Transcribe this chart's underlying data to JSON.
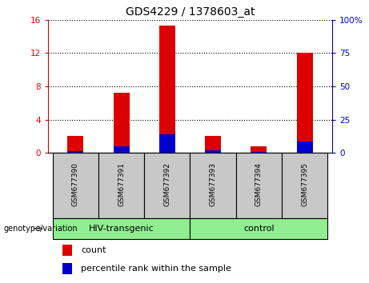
{
  "title": "GDS4229 / 1378603_at",
  "samples": [
    "GSM677390",
    "GSM677391",
    "GSM677392",
    "GSM677393",
    "GSM677394",
    "GSM677395"
  ],
  "red_values": [
    2.0,
    7.2,
    15.3,
    2.0,
    0.8,
    12.0
  ],
  "blue_values": [
    0.2,
    0.8,
    2.2,
    0.3,
    0.15,
    1.4
  ],
  "ylim_left": [
    0,
    16
  ],
  "ylim_right": [
    0,
    100
  ],
  "yticks_left": [
    0,
    4,
    8,
    12,
    16
  ],
  "yticks_right": [
    0,
    25,
    50,
    75,
    100
  ],
  "ytick_labels_right": [
    "0",
    "25",
    "50",
    "75",
    "100%"
  ],
  "group1_label": "HIV-transgenic",
  "group2_label": "control",
  "group_color": "#90ee90",
  "label_area_color": "#c8c8c8",
  "group_label_text": "genotype/variation",
  "legend_items": [
    {
      "label": "count",
      "color": "#dd0000"
    },
    {
      "label": "percentile rank within the sample",
      "color": "#0000cc"
    }
  ],
  "bar_color_red": "#dd0000",
  "bar_color_blue": "#0000cc",
  "bar_width": 0.35,
  "background_color": "#ffffff",
  "left_axis_color": "#dd0000",
  "right_axis_color": "#0000cc",
  "figsize": [
    4.61,
    3.54
  ],
  "dpi": 100
}
